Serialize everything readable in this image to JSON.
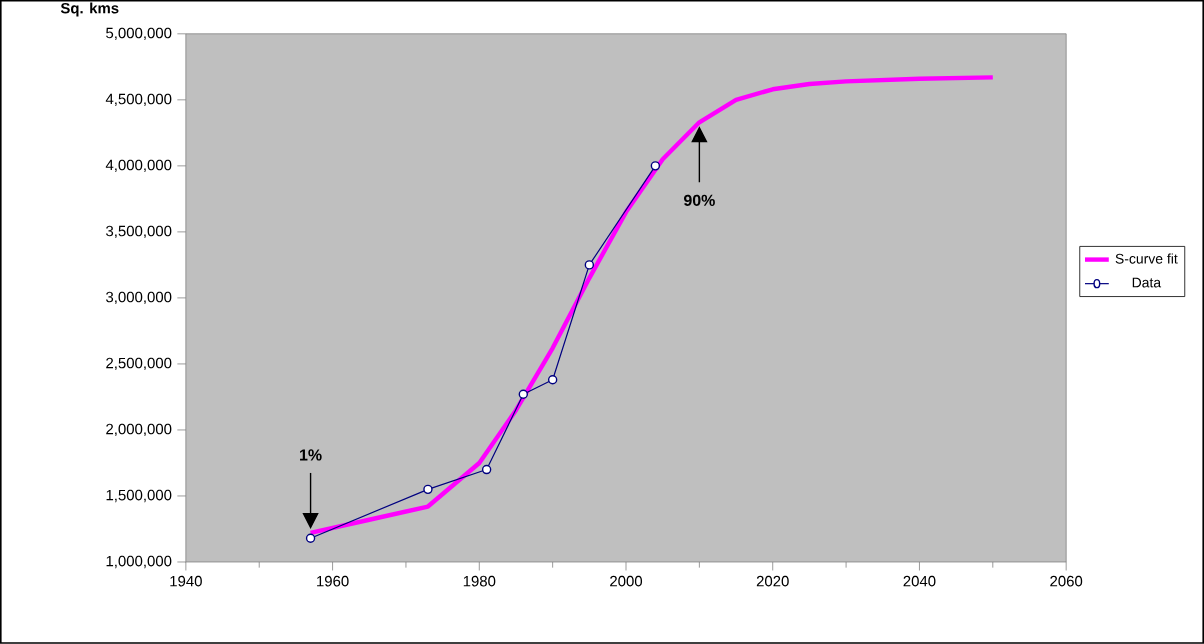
{
  "chart_data": {
    "type": "line",
    "ylabel": "Sq. kms",
    "xlim": [
      1940,
      2060
    ],
    "xticks": [
      1940,
      1960,
      1980,
      2000,
      2020,
      2040,
      2060
    ],
    "ylim": [
      1000000,
      5000000
    ],
    "yticks": [
      {
        "value": 1000000,
        "label": "1,000,000"
      },
      {
        "value": 1500000,
        "label": "1,500,000"
      },
      {
        "value": 2000000,
        "label": "2,000,000"
      },
      {
        "value": 2500000,
        "label": "2,500,000"
      },
      {
        "value": 3000000,
        "label": "3,000,000"
      },
      {
        "value": 3500000,
        "label": "3,500,000"
      },
      {
        "value": 4000000,
        "label": "4,000,000"
      },
      {
        "value": 4500000,
        "label": "4,500,000"
      },
      {
        "value": 5000000,
        "label": "5,000,000"
      }
    ],
    "series": [
      {
        "name": "S-curve fit",
        "color": "#ff00ff",
        "marker": "none",
        "x": [
          1957,
          1965,
          1973,
          1980,
          1985,
          1990,
          1995,
          2000,
          2005,
          2010,
          2015,
          2020,
          2025,
          2030,
          2040,
          2050
        ],
        "values": [
          1220000,
          1320000,
          1420000,
          1750000,
          2150000,
          2620000,
          3150000,
          3650000,
          4050000,
          4330000,
          4500000,
          4580000,
          4620000,
          4640000,
          4660000,
          4670000
        ]
      },
      {
        "name": "Data",
        "color": "#000080",
        "marker": "circle",
        "x": [
          1957,
          1973,
          1981,
          1986,
          1990,
          1995,
          2004
        ],
        "values": [
          1180000,
          1550000,
          1700000,
          2270000,
          2380000,
          3250000,
          4000000
        ]
      }
    ],
    "annotations": [
      {
        "text": "1%",
        "x": 1957,
        "y": 1250000
      },
      {
        "text": "90%",
        "x": 2010,
        "y": 4300000
      }
    ],
    "legend": "right",
    "line_style": "solid",
    "grid": false
  }
}
